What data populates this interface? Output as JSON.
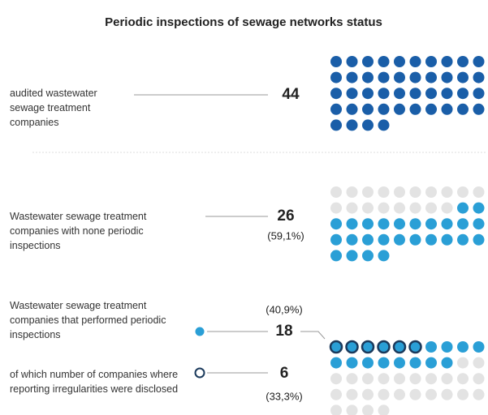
{
  "chart_data": {
    "type": "waffle",
    "title": "Periodic inspections of sewage networks status",
    "empty_color": "#e3e3e3",
    "panels": [
      {
        "series": [
          {
            "name": "audited wastewater sewage treatment companies",
            "value": 44,
            "color": "#1a5ea8"
          }
        ]
      },
      {
        "series": [
          {
            "name": "Wastewater  sewage treatment companies with none periodic inspections",
            "value": 26,
            "share": 59.1,
            "share_label": "(59,1%)",
            "color": "#2a9fd6"
          }
        ]
      },
      {
        "series": [
          {
            "name": "Wastewater sewage treatment companies that performed periodic inspections",
            "value": 18,
            "share": 40.9,
            "share_label": "(40,9%)",
            "color": "#2a9fd6"
          },
          {
            "name": "of which number of companies where reporting irregularities were disclosed",
            "value": 6,
            "share": 33.3,
            "share_label": "(33,3%)",
            "color": "#1b3a5c"
          }
        ]
      }
    ]
  }
}
